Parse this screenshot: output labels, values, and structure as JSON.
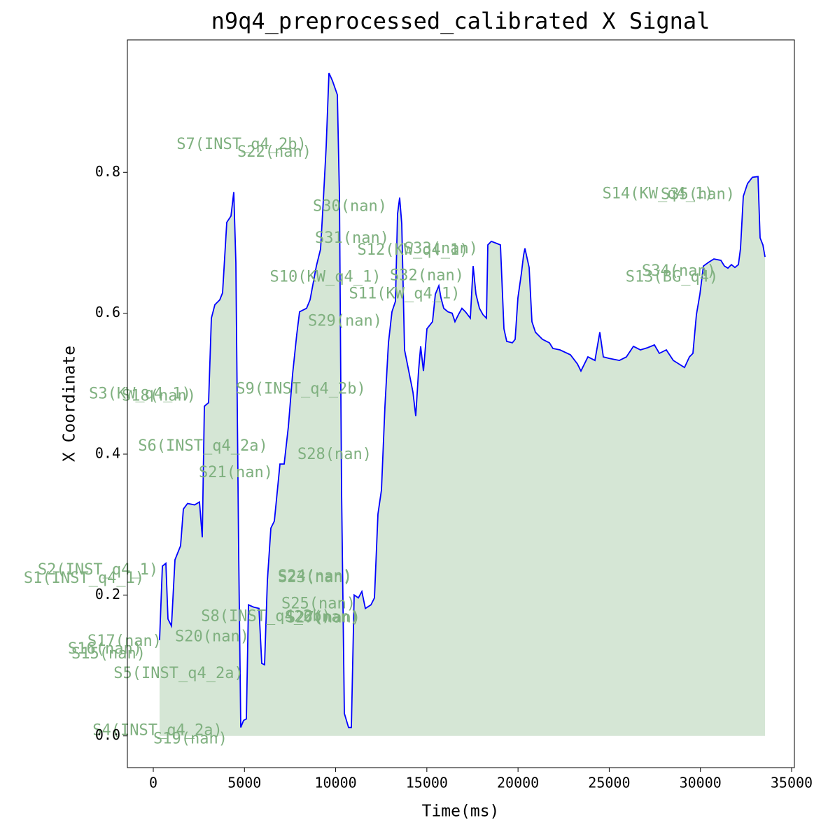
{
  "chart_data": {
    "type": "line",
    "title": "n9q4_preprocessed_calibrated X Signal",
    "xlabel": "Time(ms)",
    "ylabel": "X Coordinate",
    "color": "#0000ff",
    "fill_color": "#d5e6d5",
    "annotation_color": "#7fb07f",
    "grid": false,
    "xlim": [
      -1420,
      35154
    ],
    "ylim": [
      -0.045,
      0.988
    ],
    "xticks": [
      0,
      5000,
      10000,
      15000,
      20000,
      25000,
      30000,
      35000
    ],
    "yticks": [
      {
        "value": 0,
        "label": "0.0"
      },
      0.2,
      0.4,
      0.6,
      0.8
    ],
    "x": [
      345,
      499,
      691,
      806,
      998,
      1190,
      1497,
      1650,
      1881,
      2264,
      2533,
      2687,
      2802,
      3032,
      3186,
      3378,
      3646,
      3800,
      4030,
      4260,
      4414,
      4529,
      4682,
      4797,
      4951,
      5104,
      5220,
      5488,
      5795,
      5949,
      6102,
      6256,
      6448,
      6640,
      6947,
      7177,
      7407,
      7637,
      7868,
      8021,
      8405,
      8597,
      8942,
      9172,
      9326,
      9480,
      9633,
      9825,
      10094,
      10209,
      10324,
      10477,
      10707,
      10861,
      11014,
      11245,
      11437,
      11628,
      11935,
      12127,
      12319,
      12511,
      12703,
      12895,
      13087,
      13279,
      13394,
      13509,
      13624,
      13778,
      13931,
      14085,
      14239,
      14392,
      14546,
      14661,
      14814,
      15006,
      15313,
      15467,
      15659,
      15774,
      15927,
      16158,
      16388,
      16541,
      16733,
      16925,
      17117,
      17386,
      17539,
      17693,
      17885,
      18077,
      18268,
      18345,
      18537,
      18844,
      19036,
      19228,
      19381,
      19688,
      19842,
      19995,
      20187,
      20302,
      20379,
      20609,
      20763,
      20955,
      21339,
      21722,
      21914,
      22298,
      22874,
      23258,
      23449,
      23833,
      24217,
      24486,
      24677,
      24984,
      25560,
      25944,
      26328,
      26712,
      27095,
      27479,
      27748,
      28132,
      28516,
      28823,
      29130,
      29399,
      29590,
      29782,
      29974,
      30166,
      30435,
      30742,
      31125,
      31317,
      31509,
      31701,
      31893,
      32085,
      32200,
      32353,
      32584,
      32853,
      33160,
      33275,
      33428,
      33543
    ],
    "values": [
      0.136,
      0.241,
      0.245,
      0.166,
      0.156,
      0.25,
      0.27,
      0.322,
      0.33,
      0.328,
      0.332,
      0.282,
      0.468,
      0.473,
      0.593,
      0.612,
      0.619,
      0.629,
      0.729,
      0.738,
      0.772,
      0.672,
      0.26,
      0.012,
      0.022,
      0.024,
      0.186,
      0.183,
      0.181,
      0.103,
      0.101,
      0.22,
      0.295,
      0.305,
      0.386,
      0.386,
      0.439,
      0.513,
      0.57,
      0.602,
      0.607,
      0.619,
      0.667,
      0.691,
      0.761,
      0.836,
      0.941,
      0.93,
      0.91,
      0.766,
      0.349,
      0.032,
      0.012,
      0.012,
      0.2,
      0.196,
      0.205,
      0.181,
      0.186,
      0.196,
      0.315,
      0.349,
      0.468,
      0.558,
      0.602,
      0.617,
      0.741,
      0.764,
      0.727,
      0.548,
      0.528,
      0.508,
      0.488,
      0.454,
      0.518,
      0.553,
      0.518,
      0.578,
      0.588,
      0.627,
      0.639,
      0.622,
      0.607,
      0.602,
      0.6,
      0.588,
      0.598,
      0.607,
      0.602,
      0.593,
      0.667,
      0.627,
      0.607,
      0.598,
      0.593,
      0.697,
      0.702,
      0.699,
      0.697,
      0.578,
      0.56,
      0.558,
      0.563,
      0.622,
      0.657,
      0.682,
      0.692,
      0.665,
      0.588,
      0.573,
      0.563,
      0.558,
      0.55,
      0.548,
      0.541,
      0.528,
      0.518,
      0.538,
      0.533,
      0.573,
      0.538,
      0.536,
      0.533,
      0.538,
      0.553,
      0.548,
      0.551,
      0.555,
      0.543,
      0.548,
      0.533,
      0.528,
      0.523,
      0.538,
      0.543,
      0.598,
      0.627,
      0.667,
      0.672,
      0.677,
      0.675,
      0.667,
      0.664,
      0.669,
      0.665,
      0.669,
      0.692,
      0.766,
      0.784,
      0.793,
      0.794,
      0.707,
      0.697,
      0.68
    ],
    "annotations": [
      {
        "text": "S7(INST_q4_2b)",
        "x": 4836,
        "y": 0.839
      },
      {
        "text": "S22(nan)",
        "x": 6640,
        "y": 0.828
      },
      {
        "text": "S30(nan)",
        "x": 10785,
        "y": 0.751
      },
      {
        "text": "S31(nan)",
        "x": 10900,
        "y": 0.706
      },
      {
        "text": "S12(KW_q4_1)",
        "x": 14239,
        "y": 0.689
      },
      {
        "text": "S33(nan)",
        "x": 15774,
        "y": 0.691
      },
      {
        "text": "S10(KW_q4_1)",
        "x": 9441,
        "y": 0.651
      },
      {
        "text": "S32(nan)",
        "x": 15006,
        "y": 0.653
      },
      {
        "text": "S11(KW_q4_1)",
        "x": 13778,
        "y": 0.627
      },
      {
        "text": "S29(nan)",
        "x": 10516,
        "y": 0.588
      },
      {
        "text": "S3(KW_q4_1)",
        "x": -729,
        "y": 0.485
      },
      {
        "text": "S18(nan)",
        "x": 307,
        "y": 0.482
      },
      {
        "text": "S9(INST_q4_2b)",
        "x": 8098,
        "y": 0.492
      },
      {
        "text": "S6(INST_q4_2a)",
        "x": 2725,
        "y": 0.411
      },
      {
        "text": "S28(nan)",
        "x": 9940,
        "y": 0.399
      },
      {
        "text": "S21(nan)",
        "x": 4529,
        "y": 0.373
      },
      {
        "text": "S2(INST_q4_1)",
        "x": -3032,
        "y": 0.235
      },
      {
        "text": "S1(INST_q4_1)",
        "x": -3800,
        "y": 0.223
      },
      {
        "text": "S23(nan)",
        "x": 8866,
        "y": 0.224
      },
      {
        "text": "S24(nan)",
        "x": 8866,
        "y": 0.226
      },
      {
        "text": "S25(nan)",
        "x": 9058,
        "y": 0.187
      },
      {
        "text": "S8(INST_q4_2b)",
        "x": 6179,
        "y": 0.169
      },
      {
        "text": "S26(nan)",
        "x": 9250,
        "y": 0.168
      },
      {
        "text": "S27(nan)",
        "x": 9326,
        "y": 0.167
      },
      {
        "text": "S20(nan)",
        "x": 3224,
        "y": 0.14
      },
      {
        "text": "S17(nan)",
        "x": -1574,
        "y": 0.134
      },
      {
        "text": "S16(nan)",
        "x": -2648,
        "y": 0.123
      },
      {
        "text": "S15(nan)",
        "x": -2456,
        "y": 0.116
      },
      {
        "text": "S5(INST_q4_2a)",
        "x": 1382,
        "y": 0.088
      },
      {
        "text": "S4(INST_q4_2a)",
        "x": 230,
        "y": 0.007
      },
      {
        "text": "S19(nan)",
        "x": 2034,
        "y": -0.005
      },
      {
        "text": "S14(KW_q4_1)",
        "x": 27672,
        "y": 0.769
      },
      {
        "text": "S35(nan)",
        "x": 29859,
        "y": 0.768
      },
      {
        "text": "S34(nan)",
        "x": 28823,
        "y": 0.659
      },
      {
        "text": "S13(BG_q4)",
        "x": 28439,
        "y": 0.651
      }
    ]
  }
}
